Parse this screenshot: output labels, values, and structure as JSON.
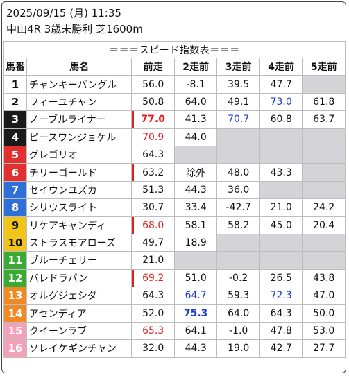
{
  "header": {
    "datetime": "2025/09/15 (月) 11:35",
    "race": "中山4R 3歳未勝利 芝1600m"
  },
  "table": {
    "title": "＝＝＝スピード指数表＝＝＝",
    "columns": [
      "馬番",
      "馬名",
      "前走",
      "2走前",
      "3走前",
      "4走前",
      "5走前"
    ],
    "frame_colors": [
      "#ffffff",
      "#1a1a1a",
      "#e03030",
      "#2f6fd8",
      "#f0c419",
      "#3aaa35",
      "#f08a24",
      "#f3a0b8"
    ],
    "rows": [
      {
        "num": "1",
        "frame": 0,
        "name": "チャンキーバングル",
        "runs": [
          "56.0",
          "-8.1",
          "39.5",
          "47.7",
          ""
        ]
      },
      {
        "num": "2",
        "frame": 0,
        "name": "フィーユチャン",
        "runs": [
          "50.8",
          "64.0",
          "49.1",
          "73.0",
          "61.8"
        ]
      },
      {
        "num": "3",
        "frame": 1,
        "name": "ノーブルライナー",
        "runs": [
          "77.0",
          "41.3",
          "70.7",
          "60.8",
          "63.7"
        ]
      },
      {
        "num": "4",
        "frame": 1,
        "name": "ピースワンジョケル",
        "runs": [
          "70.9",
          "44.0",
          "",
          "",
          ""
        ]
      },
      {
        "num": "5",
        "frame": 2,
        "name": "グレゴリオ",
        "runs": [
          "64.3",
          "",
          "",
          "",
          ""
        ]
      },
      {
        "num": "6",
        "frame": 2,
        "name": "チリーゴールド",
        "runs": [
          "63.2",
          "除外",
          "48.0",
          "43.3",
          ""
        ]
      },
      {
        "num": "7",
        "frame": 3,
        "name": "セイウンユズカ",
        "runs": [
          "51.3",
          "44.3",
          "36.0",
          "",
          ""
        ]
      },
      {
        "num": "8",
        "frame": 3,
        "name": "シリウスライト",
        "runs": [
          "30.7",
          "33.4",
          "-42.7",
          "21.0",
          "24.2"
        ]
      },
      {
        "num": "9",
        "frame": 4,
        "name": "リケアキャンディ",
        "runs": [
          "68.0",
          "58.1",
          "58.2",
          "45.0",
          "20.4"
        ]
      },
      {
        "num": "10",
        "frame": 4,
        "name": "ストラスモアローズ",
        "runs": [
          "49.7",
          "18.9",
          "",
          "",
          ""
        ]
      },
      {
        "num": "11",
        "frame": 5,
        "name": "ブルーチェリー",
        "runs": [
          "21.0",
          "",
          "",
          "",
          ""
        ]
      },
      {
        "num": "12",
        "frame": 5,
        "name": "バレドラパン",
        "runs": [
          "69.2",
          "51.0",
          "-0.2",
          "26.5",
          "43.8"
        ]
      },
      {
        "num": "13",
        "frame": 6,
        "name": "オルグジェシダ",
        "runs": [
          "64.3",
          "64.7",
          "59.3",
          "72.3",
          "47.0"
        ]
      },
      {
        "num": "14",
        "frame": 6,
        "name": "アセンディア",
        "runs": [
          "52.0",
          "75.3",
          "64.0",
          "64.3",
          "50.0"
        ]
      },
      {
        "num": "15",
        "frame": 7,
        "name": "クイーンラブ",
        "runs": [
          "65.3",
          "64.1",
          "-1.0",
          "47.8",
          "53.0"
        ]
      },
      {
        "num": "16",
        "frame": 7,
        "name": "ソレイケギンチャン",
        "runs": [
          "32.0",
          "44.3",
          "19.0",
          "42.7",
          "27.7"
        ]
      }
    ],
    "highlight_red": [
      [
        3,
        0
      ],
      [
        4,
        0
      ],
      [
        9,
        0
      ],
      [
        12,
        0
      ],
      [
        15,
        0
      ]
    ],
    "highlight_bold": [
      [
        3,
        0
      ],
      [
        14,
        1
      ]
    ],
    "highlight_blue": [
      [
        2,
        3
      ],
      [
        3,
        2
      ],
      [
        13,
        1
      ],
      [
        13,
        3
      ],
      [
        14,
        1
      ]
    ],
    "mark_rows": [
      3,
      6,
      9,
      12
    ]
  }
}
